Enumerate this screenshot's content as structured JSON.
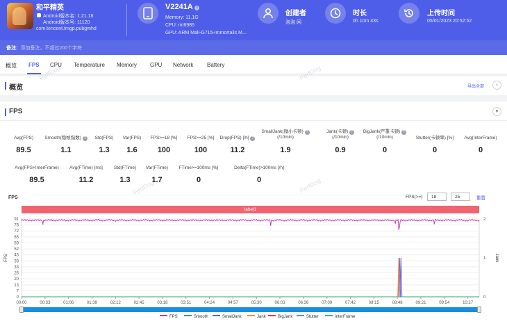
{
  "app": {
    "name": "和平精英",
    "android_version": "Android版本名: 1.21.18",
    "android_code": "Android版本号: 11120",
    "package": "com.tencent.tmgp.pubgmhd"
  },
  "device": {
    "name": "V2241A",
    "info_icon": "info-icon",
    "memory": "Memory: 11.1G",
    "cpu": "CPU: mt6985",
    "gpu": "GPU: ARM Mali-G715-Immortalis M..."
  },
  "creator": {
    "title": "创建者",
    "value": "泡泡 网"
  },
  "duration": {
    "title": "时长",
    "value": "0h 10m 43s"
  },
  "upload": {
    "title": "上传时间",
    "value": "05/01/2023 20:52:52"
  },
  "note": {
    "label": "备注:",
    "placeholder": "添加备注，不超过200个字符"
  },
  "tabs": [
    "概览",
    "FPS",
    "CPU",
    "Temperature",
    "Memory",
    "GPU",
    "Network",
    "Battery"
  ],
  "overview": {
    "title": "概览",
    "export": "导出全部"
  },
  "fps_section": {
    "title": "FPS"
  },
  "stats_row1": [
    {
      "label": "Avg(FPS)",
      "value": "89.5",
      "help": false
    },
    {
      "label": "Smooth(稳帧指数)",
      "value": "1.1",
      "help": true
    },
    {
      "label": "Std(FPS)",
      "value": "1.3",
      "help": false
    },
    {
      "label": "Var(FPS)",
      "value": "1.6",
      "help": false
    },
    {
      "label": "FPS>=18 [%]",
      "value": "100",
      "help": false
    },
    {
      "label": "FPS>=25 [%]",
      "value": "100",
      "help": false
    },
    {
      "label": "Drop(FPS) [/h]",
      "value": "11.2",
      "help": true
    },
    {
      "label": "SmallJank(微小卡顿)",
      "label2": "(/10min)",
      "value": "1.9",
      "help": true
    },
    {
      "label": "Jank(卡顿)",
      "label2": "(/10min)",
      "value": "0.9",
      "help": true
    },
    {
      "label": "BigJank(严重卡顿)",
      "label2": "(/10min)",
      "value": "0",
      "help": true
    },
    {
      "label": "Stutter(卡顿率) [%]",
      "value": "0",
      "help": false
    },
    {
      "label": "Avg(InterFrame)",
      "value": "0",
      "help": false
    }
  ],
  "stats_row2": [
    {
      "label": "Avg(FPS+InterFrame)",
      "value": "89.5",
      "help": false
    },
    {
      "label": "Avg(FTime) [ms]",
      "value": "11.2",
      "help": false
    },
    {
      "label": "Std(FTime)",
      "value": "1.3",
      "help": false
    },
    {
      "label": "Var(FTime)",
      "value": "1.7",
      "help": false
    },
    {
      "label": "FTime>=100ms [%]",
      "value": "0",
      "help": false
    },
    {
      "label": "Delta(FTime)>100ms [/h]",
      "value": "0",
      "help": false
    }
  ],
  "chart_header": {
    "title": "FPS",
    "filter_label": "FPS(>=)",
    "filter1": "18",
    "filter2": "25",
    "reset": "重置"
  },
  "watermark": "PerfDog",
  "chart_data": {
    "type": "line",
    "label_band": "label1",
    "ylabel_left": "FPS",
    "ylabel_right": "Jank",
    "y_left_ticks": [
      "91",
      "78",
      "72",
      "65",
      "59",
      "52",
      "45",
      "39",
      "33",
      "26",
      "20",
      "13",
      "7",
      "0"
    ],
    "y_right_ticks": [
      "2",
      "1",
      "0"
    ],
    "x_ticks": [
      "00:00",
      "00:33",
      "01:06",
      "01:39",
      "02:12",
      "02:45",
      "03:18",
      "03:51",
      "04:24",
      "04:57",
      "05:30",
      "06:03",
      "06:36",
      "07:09",
      "07:42",
      "08:15",
      "08:48",
      "09:21",
      "09:54",
      "10:27"
    ],
    "xlim_seconds": [
      0,
      643
    ],
    "ylim_left": [
      0,
      91
    ],
    "ylim_right": [
      0,
      2
    ],
    "series": [
      {
        "name": "FPS",
        "color": "#c03bb0",
        "baseline": 89.5,
        "dips": [
          {
            "t": 30,
            "v": 85
          },
          {
            "t": 350,
            "v": 83
          },
          {
            "t": 525,
            "v": 86
          },
          {
            "t": 530,
            "v": 78
          },
          {
            "t": 531,
            "v": 82
          },
          {
            "t": 532,
            "v": 88
          },
          {
            "t": 580,
            "v": 85
          }
        ]
      },
      {
        "name": "Smooth",
        "color": "#2fa36b",
        "baseline": 1.1
      },
      {
        "name": "SmallJank",
        "color": "#5b63e0",
        "events": [
          {
            "t": 531,
            "v": 1
          },
          {
            "t": 533,
            "v": 1
          }
        ]
      },
      {
        "name": "Jank",
        "color": "#f08a3a",
        "events": [
          {
            "t": 530,
            "v": 1
          }
        ]
      },
      {
        "name": "BigJank",
        "color": "#e0373a",
        "events": []
      },
      {
        "name": "Stutter",
        "color": "#4a90e2",
        "events": []
      },
      {
        "name": "InterFrame",
        "color": "#36b5a5",
        "events": []
      }
    ]
  }
}
